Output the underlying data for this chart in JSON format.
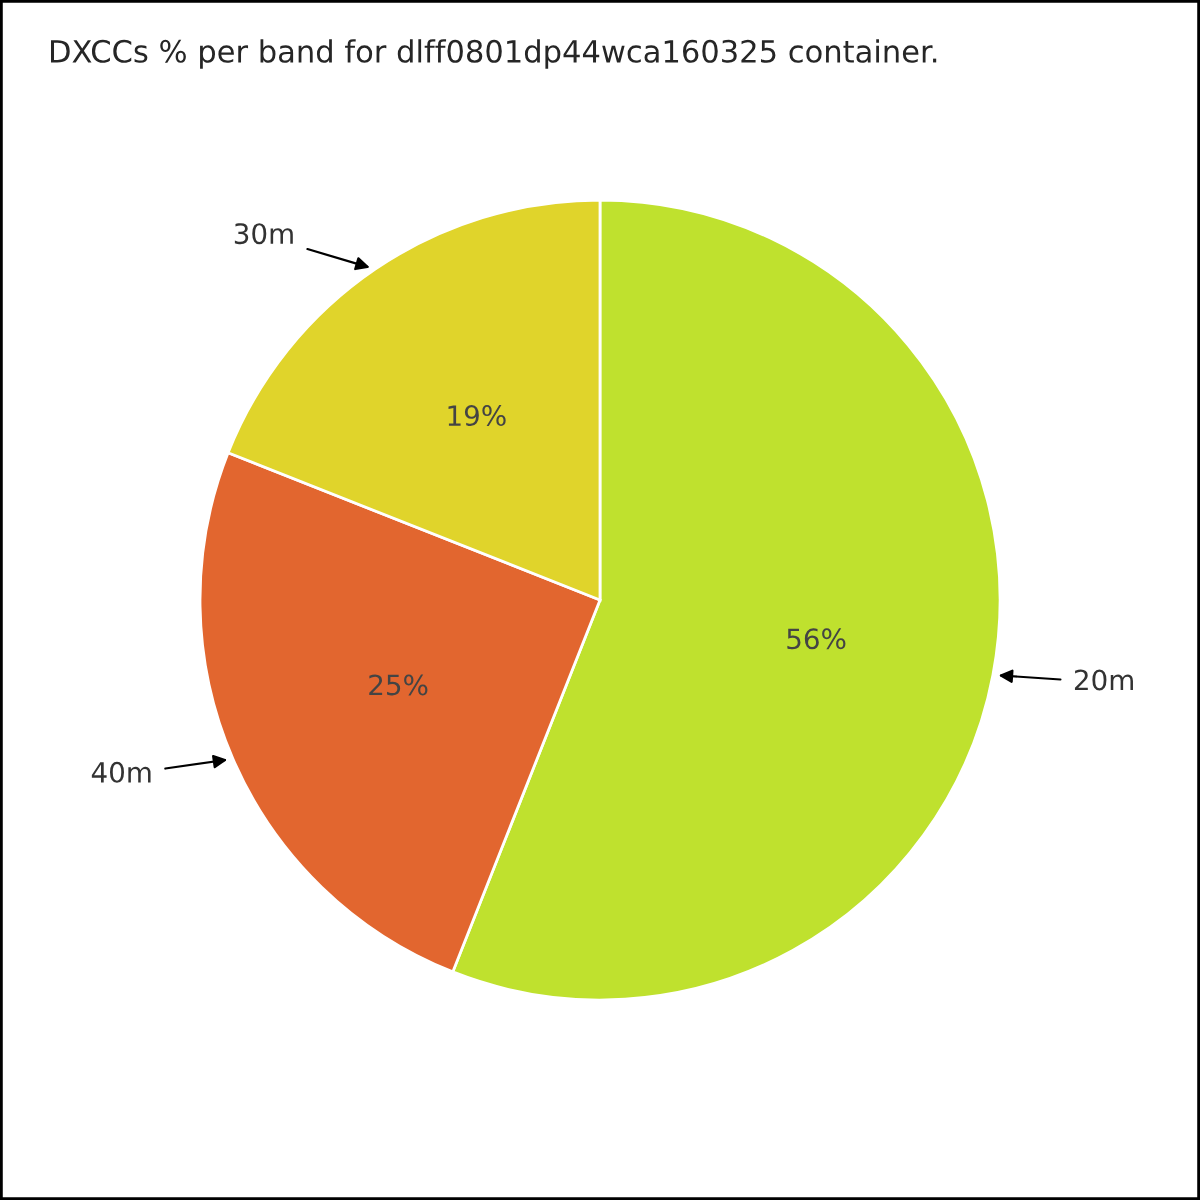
{
  "chart_data": {
    "type": "pie",
    "title": "DXCCs % per band for dlff0801dp44wca160325 container.",
    "categories": [
      "20m",
      "40m",
      "30m"
    ],
    "values": [
      56,
      25,
      19
    ],
    "colors": [
      "#bfe12e",
      "#e2662f",
      "#e0d42b"
    ],
    "value_labels": [
      "56%",
      "25%",
      "19%"
    ]
  }
}
